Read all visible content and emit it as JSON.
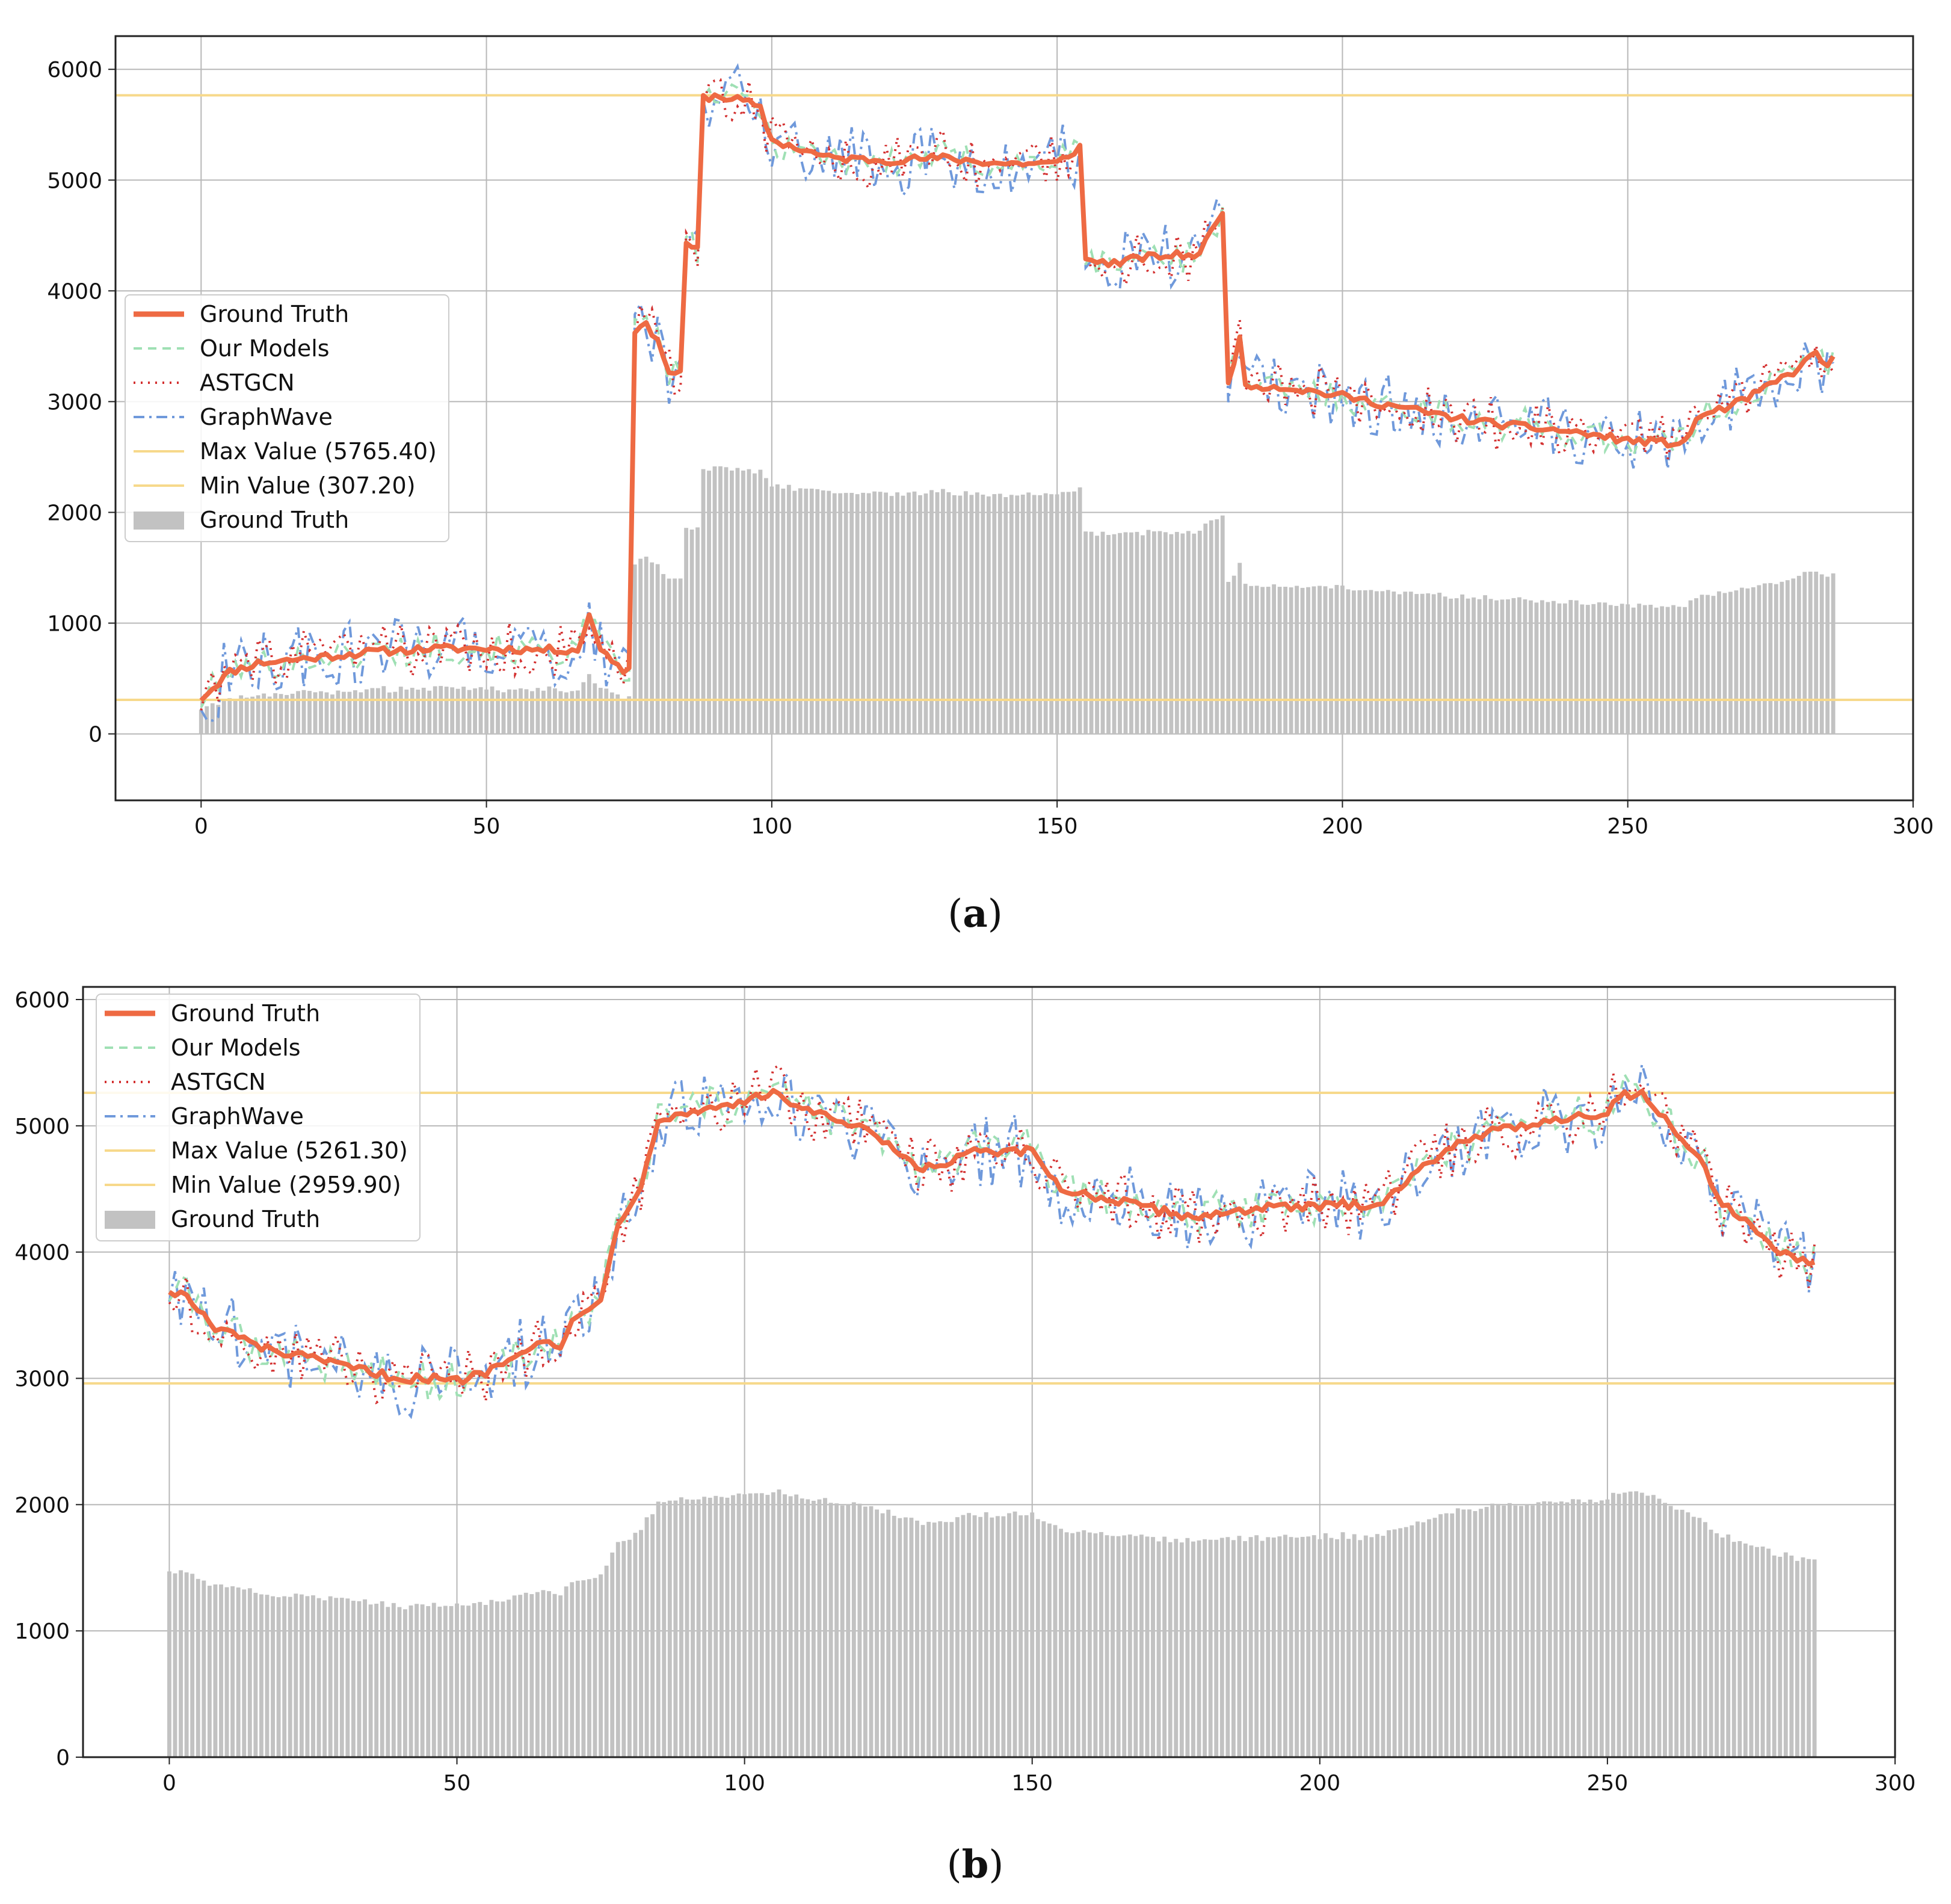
{
  "figure": {
    "panels": [
      "a",
      "b"
    ]
  },
  "colors": {
    "ground_truth": "#ee6a43",
    "our_models": "#9fe0b4",
    "astgcn": "#d32f2f",
    "graphwave": "#6f99db",
    "max_line": "#f7d98b",
    "min_line": "#f7d98b",
    "bars": "#c2c2c2",
    "grid": "#b8b8b8"
  },
  "chart_data": [
    {
      "id": "a",
      "type": "line",
      "label_open": "(",
      "label_letter": "a",
      "label_close": ")",
      "xlim": [
        -15,
        300
      ],
      "ylim": [
        -600,
        6300
      ],
      "xticks": [
        0,
        50,
        100,
        150,
        200,
        250,
        300
      ],
      "yticks": [
        0,
        1000,
        2000,
        3000,
        4000,
        5000,
        6000
      ],
      "grid": true,
      "legend_position": "center-left",
      "legend": [
        "Ground Truth",
        "Our Models",
        "ASTGCN",
        "GraphWave",
        "Max Value (5765.40)",
        "Min Value (307.20)",
        "Ground Truth"
      ],
      "max_value": 5765.4,
      "min_value": 307.2,
      "n_points": 287,
      "ground_truth_anchors": [
        [
          0,
          320
        ],
        [
          5,
          560
        ],
        [
          10,
          640
        ],
        [
          20,
          690
        ],
        [
          30,
          740
        ],
        [
          40,
          770
        ],
        [
          50,
          770
        ],
        [
          60,
          760
        ],
        [
          66,
          760
        ],
        [
          68,
          1060
        ],
        [
          70,
          780
        ],
        [
          73,
          620
        ],
        [
          74,
          560
        ],
        [
          75,
          620
        ],
        [
          76,
          3650
        ],
        [
          78,
          3680
        ],
        [
          80,
          3580
        ],
        [
          82,
          3240
        ],
        [
          84,
          3290
        ],
        [
          85,
          4400
        ],
        [
          87,
          4380
        ],
        [
          88,
          5740
        ],
        [
          90,
          5760
        ],
        [
          95,
          5720
        ],
        [
          98,
          5640
        ],
        [
          100,
          5360
        ],
        [
          110,
          5200
        ],
        [
          120,
          5180
        ],
        [
          130,
          5200
        ],
        [
          140,
          5150
        ],
        [
          150,
          5150
        ],
        [
          154,
          5300
        ],
        [
          155,
          4280
        ],
        [
          160,
          4250
        ],
        [
          165,
          4300
        ],
        [
          170,
          4320
        ],
        [
          175,
          4330
        ],
        [
          178,
          4650
        ],
        [
          179,
          4680
        ],
        [
          180,
          3200
        ],
        [
          182,
          3550
        ],
        [
          183,
          3150
        ],
        [
          190,
          3130
        ],
        [
          200,
          3050
        ],
        [
          210,
          2950
        ],
        [
          220,
          2850
        ],
        [
          230,
          2780
        ],
        [
          240,
          2730
        ],
        [
          250,
          2650
        ],
        [
          260,
          2620
        ],
        [
          262,
          2850
        ],
        [
          270,
          3000
        ],
        [
          275,
          3150
        ],
        [
          280,
          3300
        ],
        [
          283,
          3450
        ],
        [
          285,
          3300
        ],
        [
          287,
          3570
        ]
      ],
      "bar_scale": 0.4,
      "bar_offset": 100,
      "noise": {
        "ours": 140,
        "astgcn": 240,
        "graphwave": 300
      }
    },
    {
      "id": "b",
      "type": "line",
      "label_open": "(",
      "label_letter": "b",
      "label_close": ")",
      "xlim": [
        -15,
        300
      ],
      "ylim": [
        0,
        6100
      ],
      "xticks": [
        0,
        50,
        100,
        150,
        200,
        250,
        300
      ],
      "yticks": [
        0,
        1000,
        2000,
        3000,
        4000,
        5000,
        6000
      ],
      "grid": true,
      "legend_position": "top-left",
      "legend": [
        "Ground Truth",
        "Our Models",
        "ASTGCN",
        "GraphWave",
        "Max Value (5261.30)",
        "Min Value (2959.90)",
        "Ground Truth"
      ],
      "max_value": 5261.3,
      "min_value": 2959.9,
      "n_points": 287,
      "ground_truth_anchors": [
        [
          0,
          3700
        ],
        [
          3,
          3650
        ],
        [
          8,
          3380
        ],
        [
          12,
          3350
        ],
        [
          15,
          3250
        ],
        [
          20,
          3200
        ],
        [
          25,
          3150
        ],
        [
          30,
          3100
        ],
        [
          35,
          3050
        ],
        [
          40,
          3000
        ],
        [
          45,
          3000
        ],
        [
          50,
          2980
        ],
        [
          55,
          3050
        ],
        [
          60,
          3200
        ],
        [
          65,
          3300
        ],
        [
          68,
          3220
        ],
        [
          70,
          3450
        ],
        [
          75,
          3650
        ],
        [
          78,
          4200
        ],
        [
          82,
          4550
        ],
        [
          85,
          5050
        ],
        [
          90,
          5100
        ],
        [
          95,
          5150
        ],
        [
          100,
          5200
        ],
        [
          105,
          5250
        ],
        [
          110,
          5150
        ],
        [
          115,
          5050
        ],
        [
          120,
          4980
        ],
        [
          125,
          4850
        ],
        [
          130,
          4650
        ],
        [
          135,
          4700
        ],
        [
          140,
          4800
        ],
        [
          145,
          4780
        ],
        [
          150,
          4800
        ],
        [
          155,
          4500
        ],
        [
          160,
          4450
        ],
        [
          165,
          4400
        ],
        [
          170,
          4350
        ],
        [
          175,
          4300
        ],
        [
          180,
          4280
        ],
        [
          185,
          4330
        ],
        [
          190,
          4350
        ],
        [
          195,
          4350
        ],
        [
          200,
          4360
        ],
        [
          205,
          4380
        ],
        [
          210,
          4380
        ],
        [
          215,
          4550
        ],
        [
          220,
          4750
        ],
        [
          225,
          4900
        ],
        [
          230,
          4950
        ],
        [
          235,
          5000
        ],
        [
          240,
          5050
        ],
        [
          245,
          5080
        ],
        [
          250,
          5100
        ],
        [
          252,
          5240
        ],
        [
          256,
          5260
        ],
        [
          260,
          5050
        ],
        [
          265,
          4800
        ],
        [
          270,
          4400
        ],
        [
          275,
          4200
        ],
        [
          280,
          4000
        ],
        [
          285,
          3900
        ],
        [
          287,
          3870
        ]
      ],
      "bar_scale": 0.4,
      "bar_offset": 0,
      "noise": {
        "ours": 160,
        "astgcn": 230,
        "graphwave": 280
      }
    }
  ]
}
